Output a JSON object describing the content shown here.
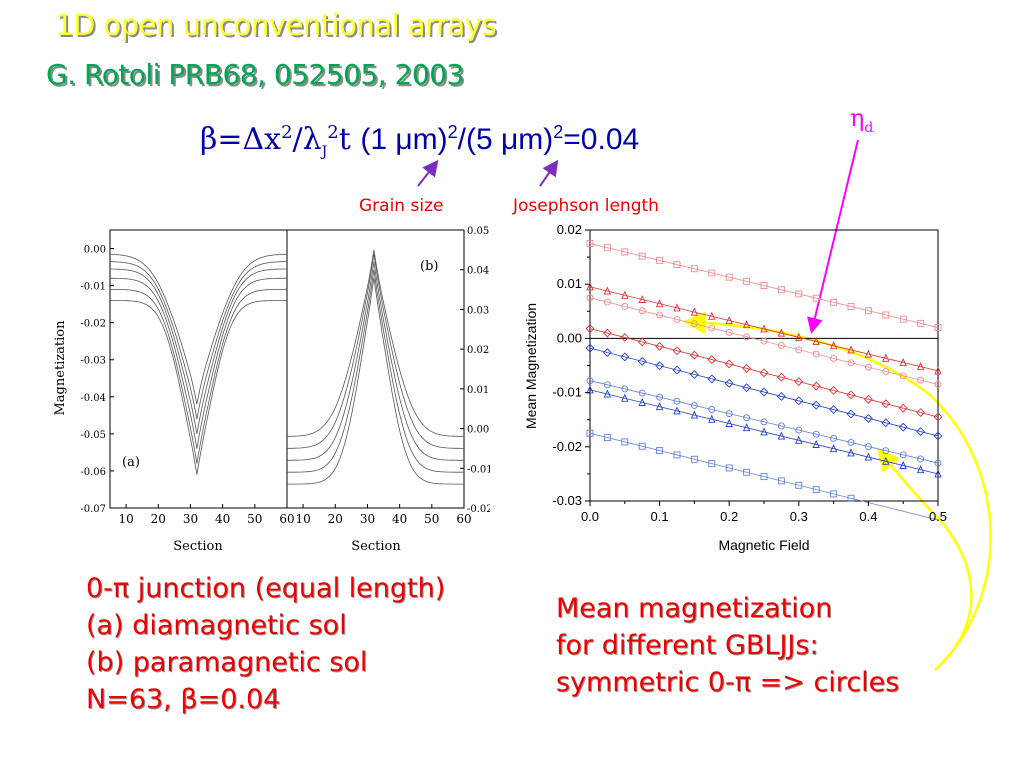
{
  "title": "1D open unconventional arrays",
  "subtitle": "G. Rotoli PRB68, 052505, 2003",
  "formula": {
    "beta": "β",
    "eq": "=",
    "delta": "Δ",
    "x": "x",
    "sq": "2",
    "slash": "/",
    "lambda": "λ",
    "J": "J",
    "t": "t",
    "rest": "(1 μm)",
    "rest2": "/(5 μm)",
    "rest3": "=0.04"
  },
  "annotations": {
    "grain_size": "Grain size",
    "josephson_length": "Josephson length",
    "eta": "η",
    "eta_sub": "d"
  },
  "caption_left": {
    "line1": "0-π junction (equal length)",
    "line2": "(a) diamagnetic sol",
    "line3": "(b) paramagnetic sol",
    "line4": "N=63, β=0.04"
  },
  "caption_right": {
    "line1": "Mean magnetization",
    "line2": "for different GBLJJs:",
    "line3": "symmetric 0-π => circles"
  },
  "colors": {
    "title": "#ffff33",
    "subtitle": "#00a651",
    "formula": "#0000aa",
    "red_text": "#ee0000",
    "eta": "#ff00ff",
    "arrow_yellow": "#ffff00"
  },
  "chart_data": [
    {
      "type": "line",
      "panel": "(a)",
      "xlabel": "Section",
      "ylabel": "Magnetization",
      "xlim": [
        5,
        60
      ],
      "ylim": [
        -0.07,
        0.005
      ],
      "xticks": [
        10,
        20,
        30,
        40,
        50,
        60
      ],
      "yticks": [
        0.0,
        -0.01,
        -0.02,
        -0.03,
        -0.04,
        -0.05,
        -0.06,
        -0.07
      ],
      "ytick_labels": [
        "0.00",
        "-0.01",
        "-0.02",
        "-0.03",
        "-0.04",
        "-0.05",
        "-0.06",
        "-0.07"
      ],
      "center": 32,
      "series": [
        {
          "edge": -0.0015,
          "width": 22,
          "peak": -0.042
        },
        {
          "edge": -0.0035,
          "width": 21,
          "peak": -0.046
        },
        {
          "edge": -0.0055,
          "width": 20,
          "peak": -0.05
        },
        {
          "edge": -0.008,
          "width": 19,
          "peak": -0.054
        },
        {
          "edge": -0.011,
          "width": 18,
          "peak": -0.058
        },
        {
          "edge": -0.014,
          "width": 17,
          "peak": -0.061
        }
      ]
    },
    {
      "type": "line",
      "panel": "(b)",
      "xlabel": "Section",
      "xlim": [
        5,
        60
      ],
      "ylim": [
        -0.02,
        0.05
      ],
      "xticks": [
        10,
        20,
        30,
        40,
        50,
        60
      ],
      "yticks": [
        0.05,
        0.04,
        0.03,
        0.02,
        0.01,
        0.0,
        -0.01,
        -0.02
      ],
      "ytick_labels": [
        "0.05",
        "0.04",
        "0.03",
        "0.02",
        "0.01",
        "0.00",
        "-0.01",
        "-0.02"
      ],
      "center": 32,
      "series": [
        {
          "edge": -0.002,
          "width": 20,
          "peak": 0.045
        },
        {
          "edge": -0.005,
          "width": 19,
          "peak": 0.044
        },
        {
          "edge": -0.008,
          "width": 18,
          "peak": 0.042
        },
        {
          "edge": -0.011,
          "width": 17,
          "peak": 0.04
        },
        {
          "edge": -0.014,
          "width": 16,
          "peak": 0.038
        }
      ]
    },
    {
      "type": "scatter",
      "xlabel": "Magnetic Field",
      "ylabel": "Mean Magnetization",
      "xlim": [
        0.0,
        0.5
      ],
      "ylim": [
        -0.03,
        0.02
      ],
      "xticks": [
        0.0,
        0.1,
        0.2,
        0.3,
        0.4,
        0.5
      ],
      "xtick_labels": [
        "0.0",
        "0.1",
        "0.2",
        "0.3",
        "0.4",
        "0.5"
      ],
      "yticks": [
        0.02,
        0.01,
        0.0,
        -0.01,
        -0.02,
        -0.03
      ],
      "ytick_labels": [
        "0.02",
        "0.01",
        "0.00",
        "-0.01",
        "-0.02",
        "-0.03"
      ],
      "series": [
        {
          "color": "#f08a8a",
          "marker": "square",
          "y0": 0.0175,
          "y1": 0.002
        },
        {
          "color": "#e03030",
          "marker": "triangle",
          "y0": 0.0095,
          "y1": -0.006
        },
        {
          "color": "#f08a8a",
          "marker": "circle",
          "y0": 0.0075,
          "y1": -0.0085
        },
        {
          "color": "#e03030",
          "marker": "diamond",
          "y0": 0.0018,
          "y1": -0.0145
        },
        {
          "color": "#2040d0",
          "marker": "diamond",
          "y0": -0.0018,
          "y1": -0.018
        },
        {
          "color": "#6080e0",
          "marker": "circle",
          "y0": -0.0078,
          "y1": -0.023
        },
        {
          "color": "#2040d0",
          "marker": "triangle",
          "y0": -0.0095,
          "y1": -0.025
        },
        {
          "color": "#6080e0",
          "marker": "square",
          "y0": -0.0175,
          "y1": -0.0335
        }
      ]
    }
  ]
}
